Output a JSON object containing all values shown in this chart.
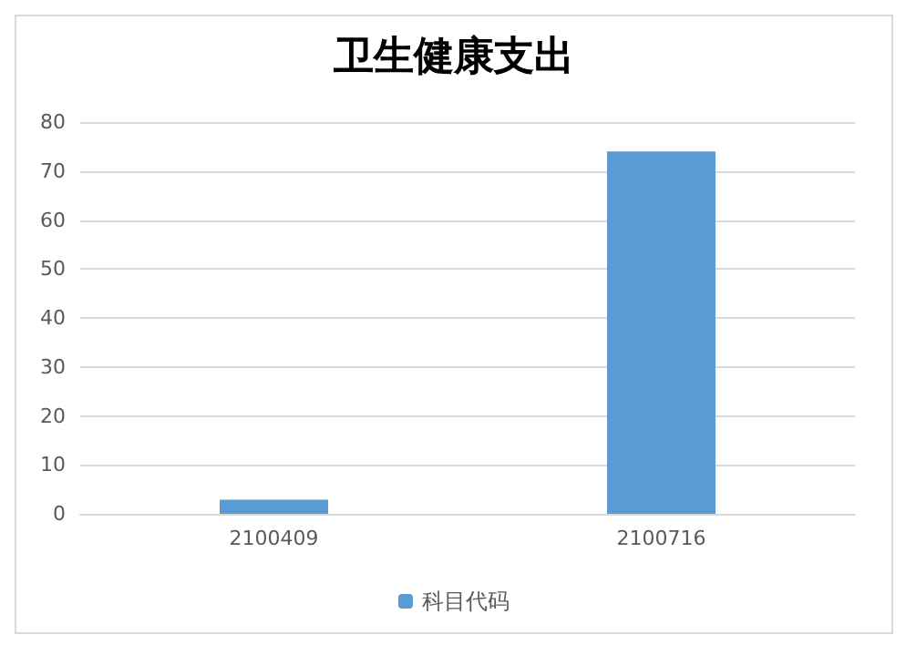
{
  "chart_data": {
    "type": "bar",
    "title": "卫生健康支出",
    "categories": [
      "2100409",
      "2100716"
    ],
    "series": [
      {
        "name": "科目代码",
        "color": "#5b9bd5",
        "values": [
          2.9,
          74
        ]
      }
    ],
    "ylim": [
      0,
      80
    ],
    "yticks": [
      0,
      10,
      20,
      30,
      40,
      50,
      60,
      70,
      80
    ],
    "grid": "y",
    "legend": "bottom"
  }
}
